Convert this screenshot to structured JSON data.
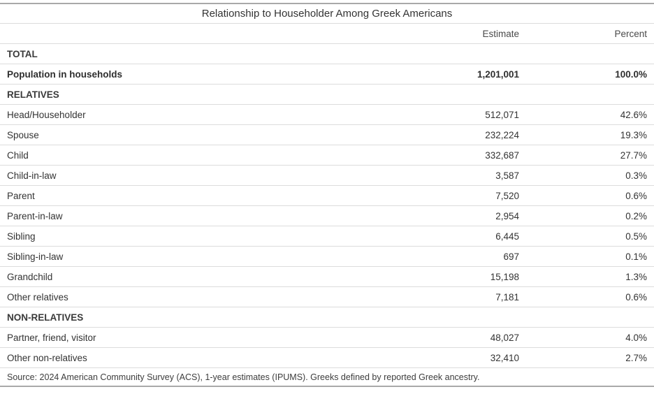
{
  "colors": {
    "heavy_rule": "#a9a9a9",
    "light_rule": "#dcdcdc",
    "text": "#333333"
  },
  "chart_data": {
    "type": "table",
    "title": "Relationship to Householder Among Greek Americans",
    "columns": [
      "",
      "Estimate",
      "Percent"
    ],
    "sections": [
      {
        "name": "TOTAL",
        "rows": [
          {
            "label": "Population in households",
            "estimate": 1201001,
            "percent": 100.0
          }
        ]
      },
      {
        "name": "RELATIVES",
        "rows": [
          {
            "label": "Head/Householder",
            "estimate": 512071,
            "percent": 42.6
          },
          {
            "label": "Spouse",
            "estimate": 232224,
            "percent": 19.3
          },
          {
            "label": "Child",
            "estimate": 332687,
            "percent": 27.7
          },
          {
            "label": "Child-in-law",
            "estimate": 3587,
            "percent": 0.3
          },
          {
            "label": "Parent",
            "estimate": 7520,
            "percent": 0.6
          },
          {
            "label": "Parent-in-law",
            "estimate": 2954,
            "percent": 0.2
          },
          {
            "label": "Sibling",
            "estimate": 6445,
            "percent": 0.5
          },
          {
            "label": "Sibling-in-law",
            "estimate": 697,
            "percent": 0.1
          },
          {
            "label": "Grandchild",
            "estimate": 15198,
            "percent": 1.3
          },
          {
            "label": "Other relatives",
            "estimate": 7181,
            "percent": 0.6
          }
        ]
      },
      {
        "name": "NON-RELATIVES",
        "rows": [
          {
            "label": "Partner, friend, visitor",
            "estimate": 48027,
            "percent": 4.0
          },
          {
            "label": "Other non-relatives",
            "estimate": 32410,
            "percent": 2.7
          }
        ]
      }
    ],
    "source": "Source: 2024 American Community Survey (ACS), 1-year estimates (IPUMS). Greeks defined by reported Greek ancestry."
  },
  "table": {
    "title": "Relationship to Householder Among Greek Americans",
    "header": {
      "estimate": "Estimate",
      "percent": "Percent"
    },
    "rows": [
      {
        "label": "TOTAL",
        "estimate": "",
        "percent": ""
      },
      {
        "label": "Population in households",
        "estimate": "1,201,001",
        "percent": "100.0%"
      },
      {
        "label": "RELATIVES",
        "estimate": "",
        "percent": ""
      },
      {
        "label": "Head/Householder",
        "estimate": "512,071",
        "percent": "42.6%"
      },
      {
        "label": "Spouse",
        "estimate": "232,224",
        "percent": "19.3%"
      },
      {
        "label": "Child",
        "estimate": "332,687",
        "percent": "27.7%"
      },
      {
        "label": "Child-in-law",
        "estimate": "3,587",
        "percent": "0.3%"
      },
      {
        "label": "Parent",
        "estimate": "7,520",
        "percent": "0.6%"
      },
      {
        "label": "Parent-in-law",
        "estimate": "2,954",
        "percent": "0.2%"
      },
      {
        "label": "Sibling",
        "estimate": "6,445",
        "percent": "0.5%"
      },
      {
        "label": "Sibling-in-law",
        "estimate": "697",
        "percent": "0.1%"
      },
      {
        "label": "Grandchild",
        "estimate": "15,198",
        "percent": "1.3%"
      },
      {
        "label": "Other relatives",
        "estimate": "7,181",
        "percent": "0.6%"
      },
      {
        "label": "NON-RELATIVES",
        "estimate": "",
        "percent": ""
      },
      {
        "label": "Partner, friend, visitor",
        "estimate": "48,027",
        "percent": "4.0%"
      },
      {
        "label": "Other non-relatives",
        "estimate": "32,410",
        "percent": "2.7%"
      }
    ],
    "source": "Source: 2024 American Community Survey (ACS), 1-year estimates (IPUMS). Greeks defined by reported Greek ancestry."
  }
}
